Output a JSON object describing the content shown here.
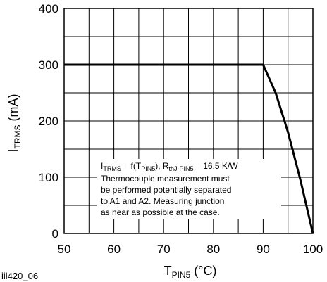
{
  "figure_id": "iil420_06",
  "chart_data": {
    "type": "line",
    "x_axis": {
      "label_main": "T",
      "label_sub": "PIN5",
      "label_unit": " (°C)",
      "min": 50,
      "max": 100,
      "ticks": [
        50,
        60,
        70,
        80,
        90,
        100
      ]
    },
    "y_axis": {
      "label_main": "I",
      "label_sub": "TRMS",
      "label_unit": " (mA)",
      "min": 0,
      "max": 400,
      "ticks": [
        0,
        100,
        200,
        300,
        400
      ]
    },
    "grid": {
      "x_step": 5,
      "y_step": 50,
      "visible": true
    },
    "series": [
      {
        "points": [
          [
            50,
            300
          ],
          [
            90,
            300
          ],
          [
            92.5,
            250
          ],
          [
            95,
            180
          ],
          [
            97.5,
            95
          ],
          [
            100,
            0
          ]
        ]
      }
    ],
    "annotation": {
      "line1": {
        "i": "I",
        "i_sub": "TRMS",
        "eq": " = f(T",
        "t_sub": "PIN5",
        "mid": "), R",
        "r_sub": "thJ-PIN5",
        "value": " = 16.5 K/W"
      },
      "lines": [
        "Thermocouple measurement must",
        "be performed potentially separated",
        "to A1 and A2. Measuring junction",
        "as near as possible at the case."
      ]
    }
  }
}
